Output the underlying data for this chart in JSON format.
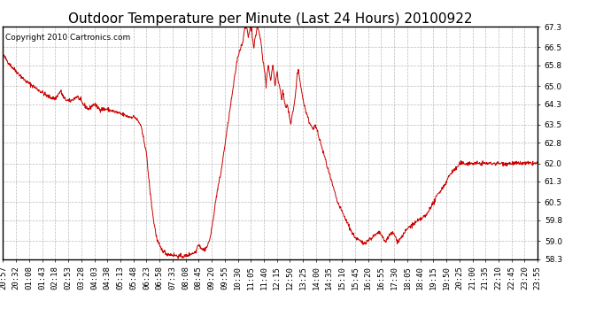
{
  "title": "Outdoor Temperature per Minute (Last 24 Hours) 20100922",
  "copyright_text": "Copyright 2010 Cartronics.com",
  "line_color": "#cc0000",
  "background_color": "#ffffff",
  "grid_color": "#aaaaaa",
  "ylim": [
    58.3,
    67.3
  ],
  "yticks": [
    58.3,
    59.0,
    59.8,
    60.5,
    61.3,
    62.0,
    62.8,
    63.5,
    64.3,
    65.0,
    65.8,
    66.5,
    67.3
  ],
  "xtick_labels": [
    "20:57",
    "20:32",
    "01:08",
    "01:43",
    "02:18",
    "02:53",
    "03:28",
    "04:03",
    "04:38",
    "05:13",
    "05:48",
    "06:23",
    "06:58",
    "07:33",
    "08:08",
    "08:45",
    "09:20",
    "09:55",
    "10:30",
    "11:05",
    "11:40",
    "12:15",
    "12:50",
    "13:25",
    "14:00",
    "14:35",
    "15:10",
    "15:45",
    "16:20",
    "16:55",
    "17:30",
    "18:05",
    "18:40",
    "19:15",
    "19:50",
    "20:25",
    "21:00",
    "21:35",
    "22:10",
    "22:45",
    "23:20",
    "23:55"
  ],
  "title_fontsize": 11,
  "tick_fontsize": 6.5,
  "copyright_fontsize": 6.5,
  "keypoints": [
    [
      0,
      66.2
    ],
    [
      20,
      65.8
    ],
    [
      40,
      65.5
    ],
    [
      60,
      65.2
    ],
    [
      80,
      65.0
    ],
    [
      100,
      64.8
    ],
    [
      120,
      64.6
    ],
    [
      140,
      64.5
    ],
    [
      155,
      64.8
    ],
    [
      165,
      64.5
    ],
    [
      180,
      64.4
    ],
    [
      200,
      64.6
    ],
    [
      215,
      64.3
    ],
    [
      230,
      64.1
    ],
    [
      245,
      64.3
    ],
    [
      260,
      64.1
    ],
    [
      280,
      64.1
    ],
    [
      300,
      64.0
    ],
    [
      320,
      63.9
    ],
    [
      340,
      63.8
    ],
    [
      355,
      63.8
    ],
    [
      370,
      63.5
    ],
    [
      385,
      62.5
    ],
    [
      395,
      61.0
    ],
    [
      405,
      59.8
    ],
    [
      415,
      59.0
    ],
    [
      425,
      58.7
    ],
    [
      440,
      58.5
    ],
    [
      460,
      58.45
    ],
    [
      475,
      58.4
    ],
    [
      490,
      58.4
    ],
    [
      505,
      58.5
    ],
    [
      515,
      58.55
    ],
    [
      520,
      58.6
    ],
    [
      525,
      58.9
    ],
    [
      530,
      58.8
    ],
    [
      535,
      58.7
    ],
    [
      540,
      58.65
    ],
    [
      545,
      58.7
    ],
    [
      550,
      58.8
    ],
    [
      555,
      59.0
    ],
    [
      560,
      59.3
    ],
    [
      565,
      59.8
    ],
    [
      570,
      60.3
    ],
    [
      575,
      60.8
    ],
    [
      580,
      61.2
    ],
    [
      585,
      61.5
    ],
    [
      590,
      62.0
    ],
    [
      595,
      62.5
    ],
    [
      600,
      63.0
    ],
    [
      605,
      63.5
    ],
    [
      610,
      64.0
    ],
    [
      615,
      64.5
    ],
    [
      620,
      65.0
    ],
    [
      625,
      65.5
    ],
    [
      630,
      66.0
    ],
    [
      635,
      66.3
    ],
    [
      640,
      66.5
    ],
    [
      645,
      66.7
    ],
    [
      648,
      67.0
    ],
    [
      651,
      67.2
    ],
    [
      654,
      67.3
    ],
    [
      657,
      67.2
    ],
    [
      660,
      66.9
    ],
    [
      663,
      67.1
    ],
    [
      666,
      67.3
    ],
    [
      669,
      67.2
    ],
    [
      672,
      66.8
    ],
    [
      675,
      66.5
    ],
    [
      678,
      66.8
    ],
    [
      681,
      67.0
    ],
    [
      684,
      67.3
    ],
    [
      687,
      67.2
    ],
    [
      690,
      67.0
    ],
    [
      693,
      66.8
    ],
    [
      696,
      66.5
    ],
    [
      699,
      66.0
    ],
    [
      702,
      65.8
    ],
    [
      705,
      65.5
    ],
    [
      708,
      65.0
    ],
    [
      711,
      65.5
    ],
    [
      714,
      65.8
    ],
    [
      717,
      65.5
    ],
    [
      720,
      65.2
    ],
    [
      723,
      65.5
    ],
    [
      726,
      65.8
    ],
    [
      729,
      65.5
    ],
    [
      732,
      65.0
    ],
    [
      735,
      65.3
    ],
    [
      738,
      65.5
    ],
    [
      741,
      65.2
    ],
    [
      744,
      65.0
    ],
    [
      747,
      64.8
    ],
    [
      750,
      64.5
    ],
    [
      753,
      64.8
    ],
    [
      756,
      64.5
    ],
    [
      759,
      64.3
    ],
    [
      762,
      64.1
    ],
    [
      765,
      64.3
    ],
    [
      768,
      64.0
    ],
    [
      771,
      63.8
    ],
    [
      774,
      63.5
    ],
    [
      777,
      63.8
    ],
    [
      780,
      64.0
    ],
    [
      783,
      64.2
    ],
    [
      786,
      64.5
    ],
    [
      789,
      65.0
    ],
    [
      792,
      65.5
    ],
    [
      795,
      65.6
    ],
    [
      798,
      65.3
    ],
    [
      801,
      65.0
    ],
    [
      804,
      64.8
    ],
    [
      807,
      64.5
    ],
    [
      810,
      64.3
    ],
    [
      815,
      64.0
    ],
    [
      820,
      63.8
    ],
    [
      825,
      63.5
    ],
    [
      830,
      63.5
    ],
    [
      835,
      63.3
    ],
    [
      840,
      63.5
    ],
    [
      845,
      63.3
    ],
    [
      850,
      63.0
    ],
    [
      855,
      62.8
    ],
    [
      860,
      62.5
    ],
    [
      865,
      62.3
    ],
    [
      870,
      62.0
    ],
    [
      880,
      61.5
    ],
    [
      890,
      61.0
    ],
    [
      900,
      60.5
    ],
    [
      910,
      60.2
    ],
    [
      920,
      59.9
    ],
    [
      930,
      59.6
    ],
    [
      940,
      59.3
    ],
    [
      950,
      59.1
    ],
    [
      960,
      59.0
    ],
    [
      970,
      58.9
    ],
    [
      980,
      59.0
    ],
    [
      990,
      59.1
    ],
    [
      1000,
      59.2
    ],
    [
      1010,
      59.3
    ],
    [
      1015,
      59.3
    ],
    [
      1020,
      59.2
    ],
    [
      1025,
      59.0
    ],
    [
      1030,
      59.0
    ],
    [
      1035,
      59.1
    ],
    [
      1040,
      59.2
    ],
    [
      1045,
      59.3
    ],
    [
      1050,
      59.3
    ],
    [
      1055,
      59.2
    ],
    [
      1060,
      59.0
    ],
    [
      1065,
      59.0
    ],
    [
      1070,
      59.1
    ],
    [
      1075,
      59.2
    ],
    [
      1080,
      59.3
    ],
    [
      1085,
      59.4
    ],
    [
      1090,
      59.5
    ],
    [
      1100,
      59.6
    ],
    [
      1110,
      59.7
    ],
    [
      1120,
      59.8
    ],
    [
      1130,
      59.9
    ],
    [
      1140,
      60.0
    ],
    [
      1150,
      60.3
    ],
    [
      1160,
      60.5
    ],
    [
      1170,
      60.8
    ],
    [
      1180,
      61.0
    ],
    [
      1190,
      61.2
    ],
    [
      1200,
      61.5
    ],
    [
      1210,
      61.7
    ],
    [
      1220,
      61.8
    ],
    [
      1230,
      62.0
    ],
    [
      1240,
      62.0
    ],
    [
      1250,
      62.0
    ],
    [
      1260,
      62.0
    ],
    [
      1270,
      62.0
    ],
    [
      1280,
      62.0
    ],
    [
      1290,
      62.0
    ],
    [
      1300,
      62.0
    ],
    [
      1310,
      62.0
    ],
    [
      1320,
      62.0
    ],
    [
      1330,
      62.0
    ],
    [
      1340,
      62.0
    ],
    [
      1350,
      62.0
    ],
    [
      1360,
      62.0
    ],
    [
      1370,
      62.0
    ],
    [
      1380,
      62.0
    ],
    [
      1390,
      62.0
    ],
    [
      1400,
      62.0
    ],
    [
      1410,
      62.0
    ],
    [
      1420,
      62.0
    ],
    [
      1430,
      62.0
    ],
    [
      1439,
      62.0
    ]
  ]
}
